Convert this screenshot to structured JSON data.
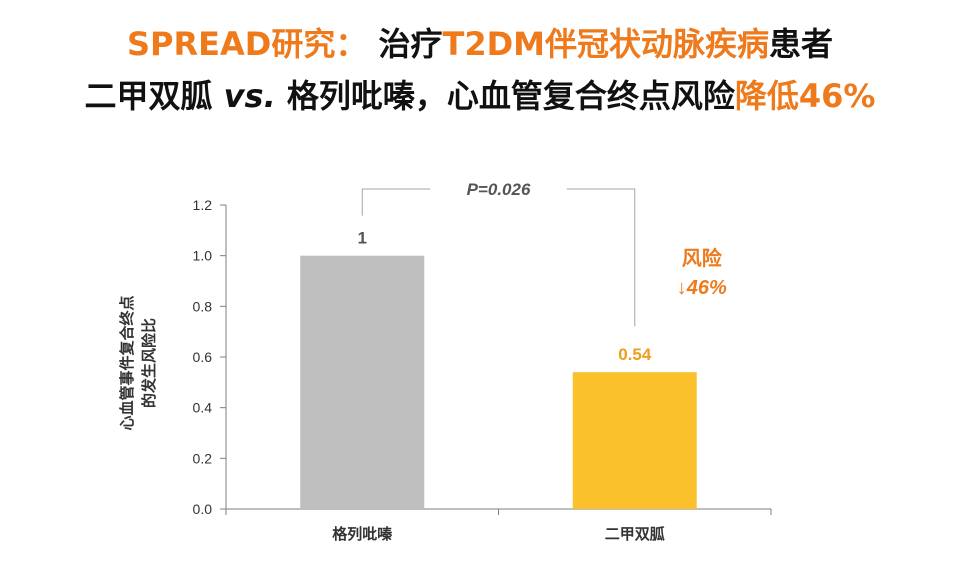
{
  "header": {
    "line1_part1": "SPREAD研究：",
    "line1_part2": "治疗",
    "line1_part3": "T2DM伴冠状动脉疾病",
    "line1_part4": "患者",
    "line2_part1": "二甲双胍 ",
    "line2_part2": "vs.",
    "line2_part3": " 格列吡嗪，心血管复合终点风险",
    "line2_part4": "降低46%"
  },
  "chart_data": {
    "type": "bar",
    "categories": [
      "格列吡嗪",
      "二甲双胍"
    ],
    "values": [
      1,
      0.54
    ],
    "value_labels": [
      "1",
      "0.54"
    ],
    "bar_colors": [
      "#bfbfbf",
      "#fbc12d"
    ],
    "value_label_colors": [
      "#555555",
      "#ee9d1c"
    ],
    "title": "",
    "xlabel": "",
    "ylabel_lines": [
      "心血管事件复合终点",
      "的发生风险比"
    ],
    "ylim": [
      0,
      1.2
    ],
    "yticks": [
      "0.0",
      "0.2",
      "0.4",
      "0.6",
      "0.8",
      "1.0",
      "1.2"
    ],
    "grid": false,
    "annotations": {
      "p_value": "P=0.026",
      "risk_label": "风险",
      "risk_change": "↓46%"
    }
  },
  "colors": {
    "accent_orange": "#ee7a1c",
    "bar_gray": "#bfbfbf",
    "bar_yellow": "#fbc12d",
    "axis": "#7f7f7f"
  }
}
